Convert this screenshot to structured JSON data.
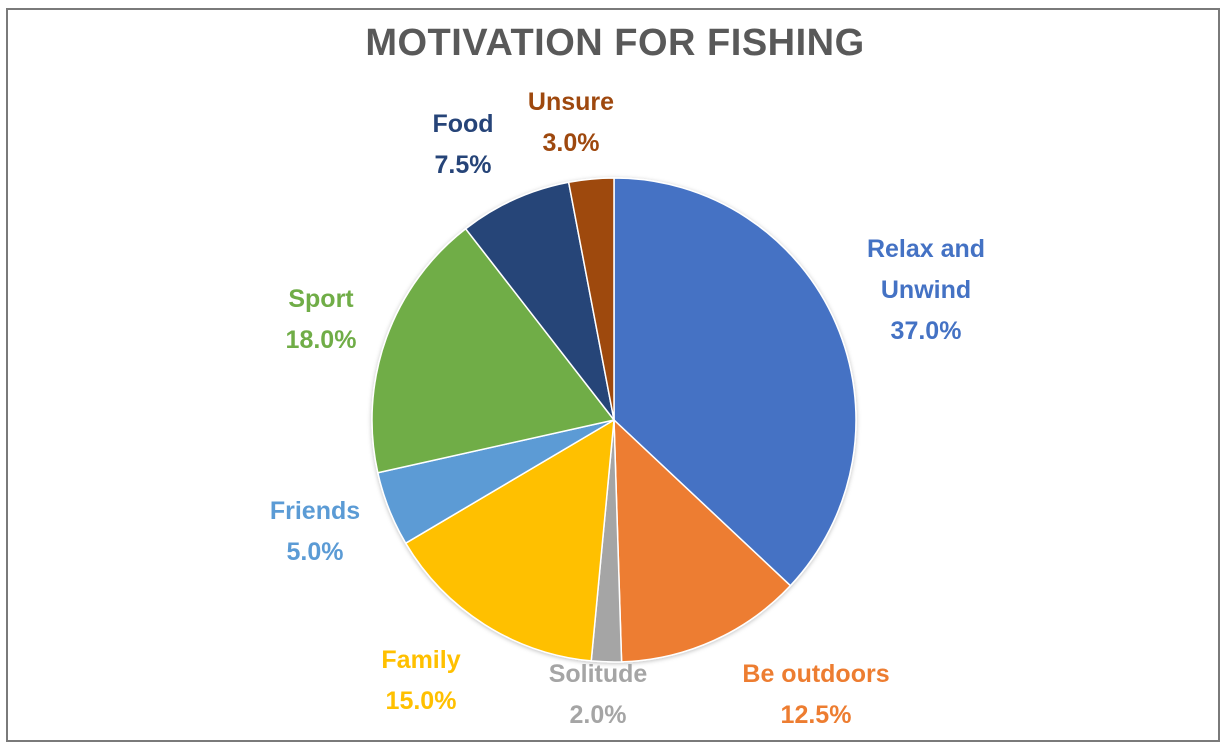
{
  "chart_data": {
    "type": "pie",
    "title": "MOTIVATION FOR FISHING",
    "slices": [
      {
        "name": "Relax and Unwind",
        "label_lines": [
          "Relax and",
          "Unwind"
        ],
        "value": 37.0,
        "value_label": "37.0%",
        "color": "#4472C4"
      },
      {
        "name": "Be outdoors",
        "label_lines": [
          "Be outdoors"
        ],
        "value": 12.5,
        "value_label": "12.5%",
        "color": "#ED7D31"
      },
      {
        "name": "Solitude",
        "label_lines": [
          "Solitude"
        ],
        "value": 2.0,
        "value_label": "2.0%",
        "color": "#A5A5A5"
      },
      {
        "name": "Family",
        "label_lines": [
          "Family"
        ],
        "value": 15.0,
        "value_label": "15.0%",
        "color": "#FFC000"
      },
      {
        "name": "Friends",
        "label_lines": [
          "Friends"
        ],
        "value": 5.0,
        "value_label": "5.0%",
        "color": "#5B9BD5"
      },
      {
        "name": "Sport",
        "label_lines": [
          "Sport"
        ],
        "value": 18.0,
        "value_label": "18.0%",
        "color": "#70AD47"
      },
      {
        "name": "Food",
        "label_lines": [
          "Food"
        ],
        "value": 7.5,
        "value_label": "7.5%",
        "color": "#264478"
      },
      {
        "name": "Unsure",
        "label_lines": [
          "Unsure"
        ],
        "value": 3.0,
        "value_label": "3.0%",
        "color": "#9E480E"
      }
    ],
    "start_angle": "12 o'clock",
    "direction": "clockwise",
    "legend": "none"
  }
}
